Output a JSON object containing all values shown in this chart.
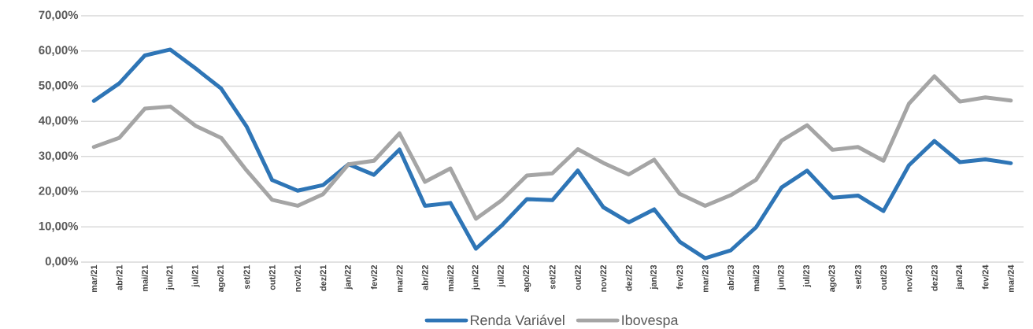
{
  "chart_data": {
    "type": "line",
    "categories": [
      "mar/21",
      "abr/21",
      "mai/21",
      "jun/21",
      "jul/21",
      "ago/21",
      "set/21",
      "out/21",
      "nov/21",
      "dez/21",
      "jan/22",
      "fev/22",
      "mar/22",
      "abr/22",
      "mai/22",
      "jun/22",
      "jul/22",
      "ago/22",
      "set/22",
      "out/22",
      "nov/22",
      "dez/22",
      "jan/23",
      "fev/23",
      "mar/23",
      "abr/23",
      "mai/23",
      "jun/23",
      "jul/23",
      "ago/23",
      "set/23",
      "out/23",
      "nov/23",
      "dez/23",
      "jan/24",
      "fev/24",
      "mar/24"
    ],
    "series": [
      {
        "name": "Renda Variável",
        "color": "#2e75b6",
        "values": [
          45.8,
          50.8,
          58.7,
          60.4,
          55.0,
          49.3,
          38.5,
          23.3,
          20.3,
          21.9,
          27.8,
          24.8,
          32.0,
          16.0,
          16.8,
          3.8,
          10.3,
          17.9,
          17.6,
          26.0,
          15.6,
          11.3,
          15.0,
          5.8,
          1.1,
          3.3,
          9.9,
          21.2,
          26.0,
          18.3,
          18.9,
          14.5,
          27.5,
          34.4,
          28.4,
          29.2,
          28.1
        ]
      },
      {
        "name": "Ibovespa",
        "color": "#a5a5a5",
        "values": [
          32.7,
          35.3,
          43.6,
          44.2,
          38.7,
          35.3,
          26.0,
          17.7,
          16.0,
          19.3,
          27.8,
          28.8,
          36.6,
          22.8,
          26.6,
          12.3,
          17.5,
          24.6,
          25.2,
          32.1,
          28.2,
          24.9,
          29.1,
          19.4,
          16.0,
          19.0,
          23.4,
          34.5,
          38.9,
          31.9,
          32.7,
          28.8,
          45.0,
          52.8,
          45.6,
          46.8,
          45.9
        ]
      }
    ],
    "ylim": [
      0,
      70
    ],
    "yticks": [
      {
        "value": 0,
        "label": "0,00%"
      },
      {
        "value": 10,
        "label": "10,00%"
      },
      {
        "value": 20,
        "label": "20,00%"
      },
      {
        "value": 30,
        "label": "30,00%"
      },
      {
        "value": 40,
        "label": "40,00%"
      },
      {
        "value": 50,
        "label": "50,00%"
      },
      {
        "value": 60,
        "label": "60,00%"
      },
      {
        "value": 70,
        "label": "70,00%"
      }
    ],
    "grid": "y",
    "legend": "bottom",
    "marker": "none",
    "line_style": "solid"
  }
}
